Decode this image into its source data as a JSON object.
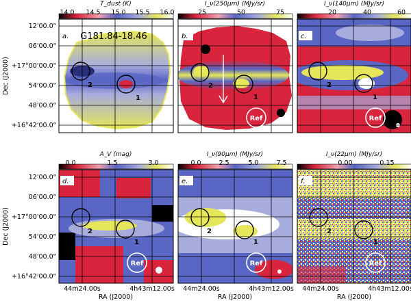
{
  "figure": {
    "axis_labels": {
      "y": "Dec (J2000)",
      "x": "RA (J2000)"
    },
    "y_ticks": [
      "12'00.0\"",
      "06'00.0\"",
      "+17°00'00.0\"",
      "54'00.0\"",
      "48'00.0\"",
      "+16°42'00.0\""
    ],
    "x_ticks": [
      "44m24.00s",
      "4h43m12.00s"
    ],
    "source_name": "G181.84-18.46",
    "region_labels": {
      "one": "1",
      "two": "2",
      "ref": "Ref"
    },
    "panels": [
      {
        "id": "a",
        "label": "a.",
        "cb_title": "T_dust (K)",
        "cb_ticks": [
          "14.0",
          "14.5",
          "15.0",
          "15.5",
          "16.0"
        ]
      },
      {
        "id": "b",
        "label": "b.",
        "cb_title": "I_ν(250μm) (MJy/sr)",
        "cb_ticks": [
          "25",
          "50",
          "75"
        ]
      },
      {
        "id": "c",
        "label": "c.",
        "cb_title": "I_ν(140μm) (MJy/sr)",
        "cb_ticks": [
          "20",
          "40",
          "60"
        ]
      },
      {
        "id": "d",
        "label": "d.",
        "cb_title": "A_V (mag)",
        "cb_ticks": [
          "0.0",
          "1.5",
          "3.0"
        ]
      },
      {
        "id": "e",
        "label": "e.",
        "cb_title": "I_ν(90μm) (MJy/sr)",
        "cb_ticks": [
          "0.0",
          "2.5",
          "5.0",
          "7.5"
        ]
      },
      {
        "id": "f",
        "label": "f.",
        "cb_title": "I_ν(22μm) (MJy/sr)",
        "cb_ticks": [
          "0.00",
          "0.15"
        ]
      }
    ],
    "colors": {
      "black": "#000000",
      "red": "#d8243c",
      "blue": "#5a66c4",
      "lavender": "#a8acdc",
      "yellow": "#e6e65a",
      "white": "#ffffff"
    }
  }
}
